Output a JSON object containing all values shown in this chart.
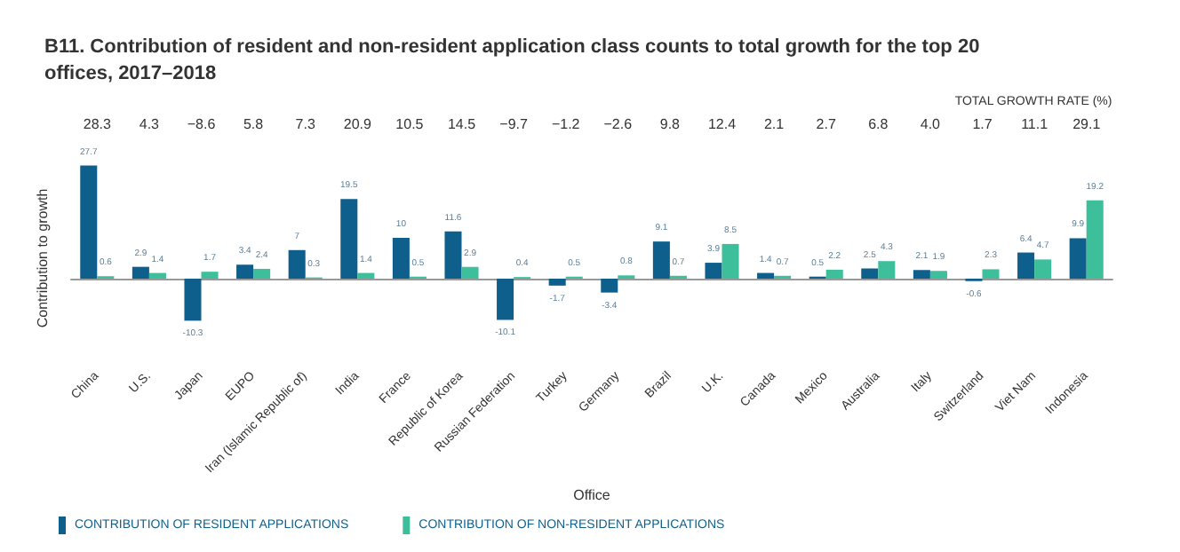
{
  "chart_data": {
    "type": "bar",
    "title": "B11. Contribution of resident and non-resident application class counts to total growth for the top 20 offices, 2017–2018",
    "xlabel": "Office",
    "ylabel": "Contribution to growth",
    "categories": [
      "China",
      "U.S.",
      "Japan",
      "EUPO",
      "Iran (Islamic Republic of)",
      "India",
      "France",
      "Republic of Korea",
      "Russian Federation",
      "Turkey",
      "Germany",
      "Brazil",
      "U.K.",
      "Canada",
      "Mexico",
      "Australia",
      "Italy",
      "Switzerland",
      "Viet Nam",
      "Indonesia"
    ],
    "series": [
      {
        "name": "CONTRIBUTION OF RESIDENT APPLICATIONS",
        "color": "#0e5f8c",
        "values": [
          27.7,
          2.9,
          -10.3,
          3.4,
          7.0,
          19.5,
          10.0,
          11.6,
          -10.1,
          -1.7,
          -3.4,
          9.1,
          3.9,
          1.4,
          0.5,
          2.5,
          2.1,
          -0.6,
          6.4,
          9.9
        ]
      },
      {
        "name": "CONTRIBUTION OF NON-RESIDENT APPLICATIONS",
        "color": "#3dbf9b",
        "values": [
          0.6,
          1.4,
          1.7,
          2.4,
          0.3,
          1.4,
          0.5,
          2.9,
          0.4,
          0.5,
          0.8,
          0.7,
          8.5,
          0.7,
          2.2,
          4.3,
          1.9,
          2.3,
          4.7,
          19.2
        ]
      }
    ],
    "data_labels": true,
    "grid": false,
    "legend": "bottom left",
    "tick_labels": "x",
    "annotations": [
      "TOTAL GROWTH RATE (%)",
      "28.3",
      "4.3",
      "−8.6",
      "5.8",
      "7.3",
      "20.9",
      "10.5",
      "14.5",
      "−9.7",
      "−1.2",
      "−2.6",
      "9.8",
      "12.4",
      "2.1",
      "2.7",
      "6.8",
      "4.0",
      "1.7",
      "11.1",
      "29.1"
    ]
  }
}
